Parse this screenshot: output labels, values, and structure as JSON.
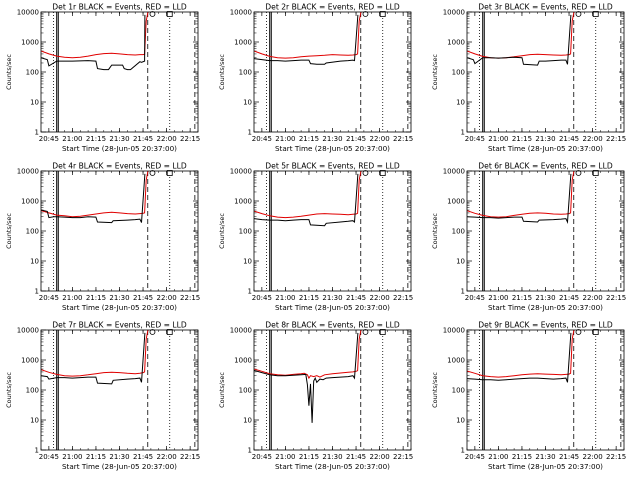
{
  "figure": {
    "xlabel": "Start Time (28-Jun-05 20:37:00)",
    "ylabel": "Counts/sec"
  },
  "shared_axes": {
    "x_ticks": [
      "20:45",
      "21:00",
      "21:15",
      "21:30",
      "21:45",
      "22:00",
      "22:15"
    ],
    "x_tick_minutes": [
      45,
      60,
      75,
      90,
      105,
      120,
      135
    ],
    "xlim_minutes": [
      40,
      140
    ],
    "y_scale": "log",
    "ylim": [
      1,
      10000
    ],
    "y_ticks": [
      "1",
      "10",
      "100",
      "1000",
      "10000"
    ],
    "y_tick_values": [
      1,
      10,
      100,
      1000,
      10000
    ],
    "vlines": [
      {
        "minute": 48,
        "style": "dotted"
      },
      {
        "minute": 50,
        "style": "solid"
      },
      {
        "minute": 51,
        "style": "solid"
      },
      {
        "minute": 108,
        "style": "dashed"
      },
      {
        "minute": 122,
        "style": "dotted"
      },
      {
        "minute": 138,
        "style": "dashed"
      }
    ],
    "markers": [
      {
        "minute": 111,
        "shape": "circle"
      },
      {
        "minute": 122,
        "shape": "square"
      }
    ],
    "colors": {
      "events": "#000000",
      "lld": "#e00000"
    }
  },
  "chart_data": [
    {
      "type": "line",
      "title": "Det 1r BLACK = Events, RED = LLD",
      "series": [
        {
          "name": "Events",
          "color": "#000000",
          "x": [
            40,
            44,
            45,
            50,
            56,
            60,
            70,
            75,
            76,
            80,
            83,
            85,
            90,
            92,
            93,
            95,
            97,
            103,
            104,
            106,
            106.2
          ],
          "y": [
            300,
            260,
            160,
            230,
            230,
            230,
            240,
            230,
            130,
            120,
            120,
            170,
            170,
            170,
            130,
            120,
            120,
            220,
            210,
            230,
            8000
          ]
        },
        {
          "name": "LLD",
          "color": "#e00000",
          "x": [
            40,
            45,
            50,
            55,
            60,
            65,
            70,
            75,
            80,
            85,
            90,
            95,
            100,
            103,
            105,
            106,
            107,
            108,
            109,
            110,
            111,
            112,
            115,
            120,
            125,
            130,
            135,
            138,
            140
          ],
          "y": [
            500,
            400,
            340,
            310,
            300,
            310,
            340,
            380,
            410,
            420,
            400,
            380,
            370,
            380,
            380,
            390,
            5000,
            9500,
            11000,
            11000,
            11000,
            11000,
            11000,
            11000,
            11000,
            11000,
            11000,
            11000,
            11000
          ]
        }
      ]
    },
    {
      "type": "line",
      "title": "Det 2r BLACK = Events, RED = LLD",
      "series": [
        {
          "name": "Events",
          "color": "#000000",
          "x": [
            40,
            45,
            50,
            55,
            60,
            65,
            70,
            75,
            76,
            80,
            85,
            86,
            95,
            100,
            103,
            104,
            106.2
          ],
          "y": [
            280,
            260,
            240,
            240,
            230,
            240,
            250,
            250,
            190,
            180,
            180,
            200,
            230,
            240,
            250,
            240,
            8000
          ]
        },
        {
          "name": "LLD",
          "color": "#e00000",
          "x": [
            40,
            45,
            50,
            55,
            60,
            65,
            70,
            75,
            80,
            85,
            90,
            95,
            100,
            103,
            105,
            106,
            107,
            108,
            109,
            110,
            115,
            120,
            125,
            130,
            135,
            140
          ],
          "y": [
            500,
            400,
            330,
            300,
            290,
            300,
            320,
            340,
            350,
            360,
            380,
            370,
            360,
            370,
            380,
            400,
            5000,
            9500,
            11000,
            11000,
            11000,
            11000,
            11000,
            11000,
            11000,
            11000
          ]
        }
      ]
    },
    {
      "type": "line",
      "title": "Det 3r BLACK = Events, RED = LLD",
      "series": [
        {
          "name": "Events",
          "color": "#000000",
          "x": [
            40,
            44,
            45,
            50,
            55,
            60,
            65,
            70,
            75,
            76,
            85,
            86,
            90,
            95,
            100,
            103,
            104,
            106.2
          ],
          "y": [
            300,
            260,
            190,
            300,
            300,
            290,
            300,
            310,
            300,
            180,
            170,
            230,
            230,
            240,
            250,
            250,
            180,
            8000
          ]
        },
        {
          "name": "LLD",
          "color": "#e00000",
          "x": [
            40,
            45,
            50,
            55,
            60,
            65,
            70,
            75,
            80,
            85,
            90,
            95,
            100,
            103,
            105,
            106,
            107,
            108,
            109,
            110,
            115,
            120,
            125,
            130,
            135,
            140
          ],
          "y": [
            500,
            400,
            330,
            300,
            290,
            300,
            320,
            350,
            380,
            390,
            380,
            370,
            360,
            370,
            380,
            400,
            5000,
            9500,
            11000,
            11000,
            11000,
            11000,
            11000,
            11000,
            11000,
            11000
          ]
        }
      ]
    },
    {
      "type": "line",
      "title": "Det 4r BLACK = Events, RED = LLD",
      "series": [
        {
          "name": "Events",
          "color": "#000000",
          "x": [
            40,
            44,
            45,
            48,
            50,
            55,
            60,
            65,
            70,
            75,
            76,
            85,
            86,
            95,
            100,
            103,
            104,
            106.2
          ],
          "y": [
            500,
            450,
            280,
            300,
            300,
            290,
            280,
            280,
            300,
            290,
            200,
            190,
            220,
            230,
            240,
            250,
            190,
            8000
          ]
        },
        {
          "name": "LLD",
          "color": "#e00000",
          "x": [
            40,
            45,
            50,
            55,
            60,
            65,
            70,
            75,
            80,
            85,
            90,
            95,
            100,
            103,
            105,
            106,
            107,
            108,
            109,
            110,
            115,
            120,
            125,
            130,
            135,
            140
          ],
          "y": [
            480,
            400,
            340,
            320,
            300,
            310,
            340,
            370,
            400,
            420,
            400,
            380,
            370,
            380,
            390,
            400,
            5000,
            9500,
            11000,
            11000,
            11000,
            11000,
            11000,
            11000,
            11000,
            11000
          ]
        }
      ]
    },
    {
      "type": "line",
      "title": "Det 5r BLACK = Events, RED = LLD",
      "series": [
        {
          "name": "Events",
          "color": "#000000",
          "x": [
            40,
            45,
            50,
            55,
            60,
            65,
            70,
            75,
            76,
            85,
            86,
            95,
            100,
            103,
            104,
            106.2
          ],
          "y": [
            260,
            240,
            230,
            230,
            220,
            230,
            240,
            240,
            160,
            150,
            180,
            200,
            210,
            220,
            200,
            8000
          ]
        },
        {
          "name": "LLD",
          "color": "#e00000",
          "x": [
            40,
            45,
            50,
            55,
            60,
            65,
            70,
            75,
            80,
            85,
            90,
            95,
            100,
            103,
            105,
            106,
            107,
            108,
            109,
            110,
            115,
            120,
            125,
            130,
            135,
            140
          ],
          "y": [
            460,
            380,
            320,
            290,
            280,
            290,
            310,
            340,
            370,
            380,
            370,
            360,
            350,
            360,
            370,
            390,
            5000,
            9500,
            11000,
            11000,
            11000,
            11000,
            11000,
            11000,
            11000,
            11000
          ]
        }
      ]
    },
    {
      "type": "line",
      "title": "Det 6r BLACK = Events, RED = LLD",
      "series": [
        {
          "name": "Events",
          "color": "#000000",
          "x": [
            40,
            45,
            50,
            55,
            60,
            65,
            70,
            75,
            76,
            85,
            86,
            95,
            100,
            103,
            104,
            106.2
          ],
          "y": [
            300,
            290,
            280,
            280,
            270,
            280,
            290,
            290,
            210,
            200,
            230,
            240,
            250,
            260,
            200,
            8000
          ]
        },
        {
          "name": "LLD",
          "color": "#e00000",
          "x": [
            40,
            45,
            50,
            55,
            60,
            65,
            70,
            75,
            80,
            85,
            90,
            95,
            100,
            103,
            105,
            106,
            107,
            108,
            109,
            110,
            115,
            120,
            125,
            130,
            135,
            140
          ],
          "y": [
            480,
            390,
            330,
            300,
            290,
            300,
            330,
            360,
            390,
            400,
            390,
            370,
            360,
            370,
            380,
            400,
            5000,
            9500,
            11000,
            11000,
            11000,
            11000,
            11000,
            11000,
            11000,
            11000
          ]
        }
      ]
    },
    {
      "type": "line",
      "title": "Det 7r BLACK = Events, RED = LLD",
      "series": [
        {
          "name": "Events",
          "color": "#000000",
          "x": [
            40,
            44,
            45,
            50,
            55,
            60,
            65,
            70,
            75,
            76,
            85,
            86,
            95,
            100,
            103,
            104,
            106.2
          ],
          "y": [
            300,
            280,
            230,
            260,
            260,
            250,
            260,
            270,
            270,
            170,
            160,
            210,
            230,
            240,
            250,
            180,
            8000
          ]
        },
        {
          "name": "LLD",
          "color": "#e00000",
          "x": [
            40,
            45,
            50,
            55,
            60,
            65,
            70,
            75,
            80,
            85,
            90,
            95,
            100,
            103,
            105,
            106,
            107,
            108,
            109,
            110,
            115,
            120,
            125,
            130,
            135,
            140
          ],
          "y": [
            480,
            390,
            330,
            300,
            290,
            300,
            320,
            350,
            380,
            390,
            380,
            360,
            350,
            360,
            380,
            400,
            5000,
            9500,
            11000,
            11000,
            11000,
            11000,
            11000,
            11000,
            11000,
            11000
          ]
        }
      ]
    },
    {
      "type": "line",
      "title": "Det 8r BLACK = Events, RED = LLD",
      "series": [
        {
          "name": "Events",
          "color": "#000000",
          "x": [
            40,
            45,
            50,
            55,
            60,
            65,
            70,
            73,
            74,
            75,
            76,
            77,
            78,
            79,
            80,
            82,
            84,
            86,
            90,
            95,
            100,
            103,
            104,
            106.2
          ],
          "y": [
            450,
            380,
            320,
            300,
            300,
            310,
            320,
            330,
            150,
            30,
            160,
            8,
            200,
            250,
            180,
            230,
            220,
            250,
            260,
            270,
            280,
            300,
            250,
            8000
          ]
        },
        {
          "name": "LLD",
          "color": "#e00000",
          "x": [
            40,
            45,
            50,
            55,
            60,
            65,
            70,
            72,
            74,
            75,
            76,
            78,
            80,
            82,
            85,
            90,
            95,
            100,
            103,
            105,
            106,
            107,
            108,
            109,
            110,
            115,
            120,
            125,
            130,
            135,
            140
          ],
          "y": [
            500,
            420,
            350,
            320,
            310,
            330,
            350,
            360,
            320,
            250,
            300,
            280,
            300,
            270,
            320,
            350,
            370,
            390,
            400,
            420,
            440,
            5000,
            9500,
            11000,
            11000,
            11000,
            11000,
            11000,
            11000,
            11000,
            11000
          ]
        }
      ]
    },
    {
      "type": "line",
      "title": "Det 9r BLACK = Events, RED = LLD",
      "series": [
        {
          "name": "Events",
          "color": "#000000",
          "x": [
            40,
            45,
            50,
            55,
            60,
            65,
            70,
            75,
            80,
            85,
            90,
            95,
            100,
            103,
            104,
            106.2
          ],
          "y": [
            240,
            230,
            220,
            220,
            210,
            220,
            230,
            240,
            250,
            250,
            240,
            230,
            240,
            250,
            180,
            8000
          ]
        },
        {
          "name": "LLD",
          "color": "#e00000",
          "x": [
            40,
            45,
            50,
            55,
            60,
            65,
            70,
            75,
            80,
            85,
            90,
            95,
            100,
            103,
            105,
            106,
            107,
            108,
            109,
            110,
            115,
            120,
            125,
            130,
            135,
            140
          ],
          "y": [
            430,
            360,
            300,
            280,
            270,
            280,
            300,
            320,
            340,
            350,
            340,
            330,
            320,
            330,
            340,
            360,
            5000,
            9500,
            11000,
            11000,
            11000,
            11000,
            11000,
            11000,
            11000,
            11000
          ]
        }
      ]
    }
  ]
}
